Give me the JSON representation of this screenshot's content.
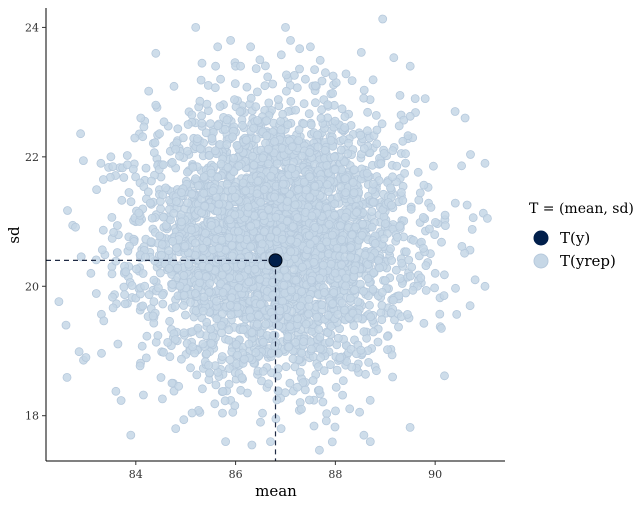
{
  "chart_data": {
    "type": "scatter",
    "xlabel": "mean",
    "ylabel": "sd",
    "xlim": [
      82.2,
      91.4
    ],
    "ylim": [
      17.3,
      24.3
    ],
    "x_ticks": [
      "84",
      "86",
      "88",
      "90"
    ],
    "y_ticks": [
      "18",
      "20",
      "22",
      "24"
    ],
    "grid": false,
    "legend": {
      "position": "right",
      "title": "T = (mean, sd)",
      "entries": [
        {
          "label": "T(y)",
          "color": "#011f4b",
          "stroke": "#011f4b"
        },
        {
          "label": "T(yrep)",
          "color": "#c6d7e6",
          "stroke": "#b6c9dc"
        }
      ]
    },
    "observed": {
      "x": 86.8,
      "y": 20.4,
      "color": "#011f4b"
    },
    "replicates": {
      "color": "#c6d7e6",
      "stroke": "#b6c9dc",
      "count": 4000,
      "mean_x": 86.8,
      "sd_x": 1.3,
      "mean_y": 20.7,
      "sd_y": 1.0,
      "notable_points": [
        {
          "x": 82.6,
          "y": 19.4
        },
        {
          "x": 83.0,
          "y": 18.9
        },
        {
          "x": 83.1,
          "y": 20.2
        },
        {
          "x": 83.3,
          "y": 21.9
        },
        {
          "x": 83.5,
          "y": 22.0
        },
        {
          "x": 83.9,
          "y": 17.7
        },
        {
          "x": 84.1,
          "y": 22.6
        },
        {
          "x": 84.4,
          "y": 23.6
        },
        {
          "x": 84.4,
          "y": 22.8
        },
        {
          "x": 84.8,
          "y": 17.8
        },
        {
          "x": 85.2,
          "y": 24.0
        },
        {
          "x": 85.6,
          "y": 23.4
        },
        {
          "x": 85.7,
          "y": 23.2
        },
        {
          "x": 85.8,
          "y": 17.6
        },
        {
          "x": 85.9,
          "y": 23.8
        },
        {
          "x": 86.0,
          "y": 23.4
        },
        {
          "x": 86.1,
          "y": 23.4
        },
        {
          "x": 86.3,
          "y": 23.7
        },
        {
          "x": 86.7,
          "y": 17.6
        },
        {
          "x": 87.0,
          "y": 24.0
        },
        {
          "x": 87.1,
          "y": 23.8
        },
        {
          "x": 87.4,
          "y": 23.2
        },
        {
          "x": 87.6,
          "y": 23.1
        },
        {
          "x": 87.5,
          "y": 23.7
        },
        {
          "x": 87.8,
          "y": 23.3
        },
        {
          "x": 88.7,
          "y": 17.6
        },
        {
          "x": 89.5,
          "y": 23.4
        },
        {
          "x": 89.6,
          "y": 22.9
        },
        {
          "x": 89.8,
          "y": 22.9
        },
        {
          "x": 90.0,
          "y": 20.2
        },
        {
          "x": 90.2,
          "y": 21.1
        },
        {
          "x": 90.4,
          "y": 22.7
        },
        {
          "x": 90.6,
          "y": 22.6
        },
        {
          "x": 90.7,
          "y": 19.7
        },
        {
          "x": 90.8,
          "y": 20.1
        },
        {
          "x": 91.0,
          "y": 21.9
        },
        {
          "x": 91.0,
          "y": 20.0
        }
      ]
    }
  }
}
